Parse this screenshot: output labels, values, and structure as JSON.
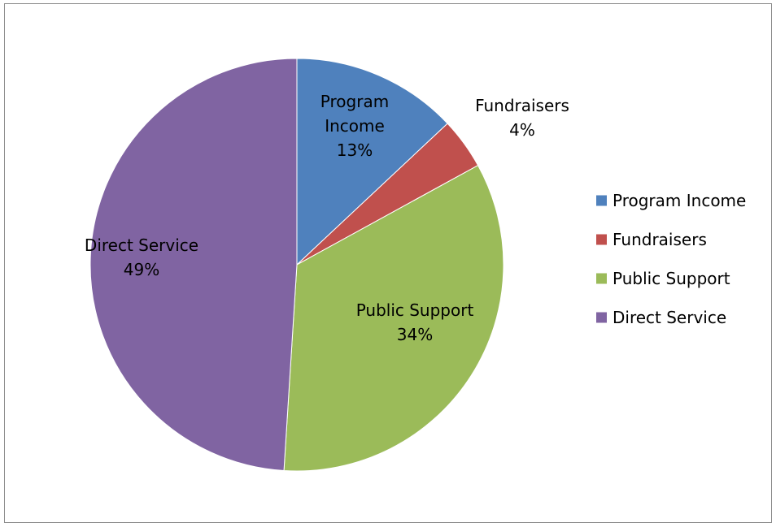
{
  "chart_data": {
    "type": "pie",
    "title": "",
    "categories": [
      "Program Income",
      "Fundraisers",
      "Public Support",
      "Direct Service"
    ],
    "values": [
      13,
      4,
      34,
      49
    ],
    "data_labels": [
      [
        "Program",
        "Income",
        "13%"
      ],
      [
        "Fundraisers",
        "4%"
      ],
      [
        "Public Support",
        "34%"
      ],
      [
        "Direct Service",
        "49%"
      ]
    ],
    "colors": [
      "#4f81bd",
      "#c0504d",
      "#9bbb59",
      "#8064a2"
    ],
    "legend": {
      "position": "right",
      "entries": [
        "Program Income",
        "Fundraisers",
        "Public Support",
        "Direct Service"
      ]
    }
  }
}
